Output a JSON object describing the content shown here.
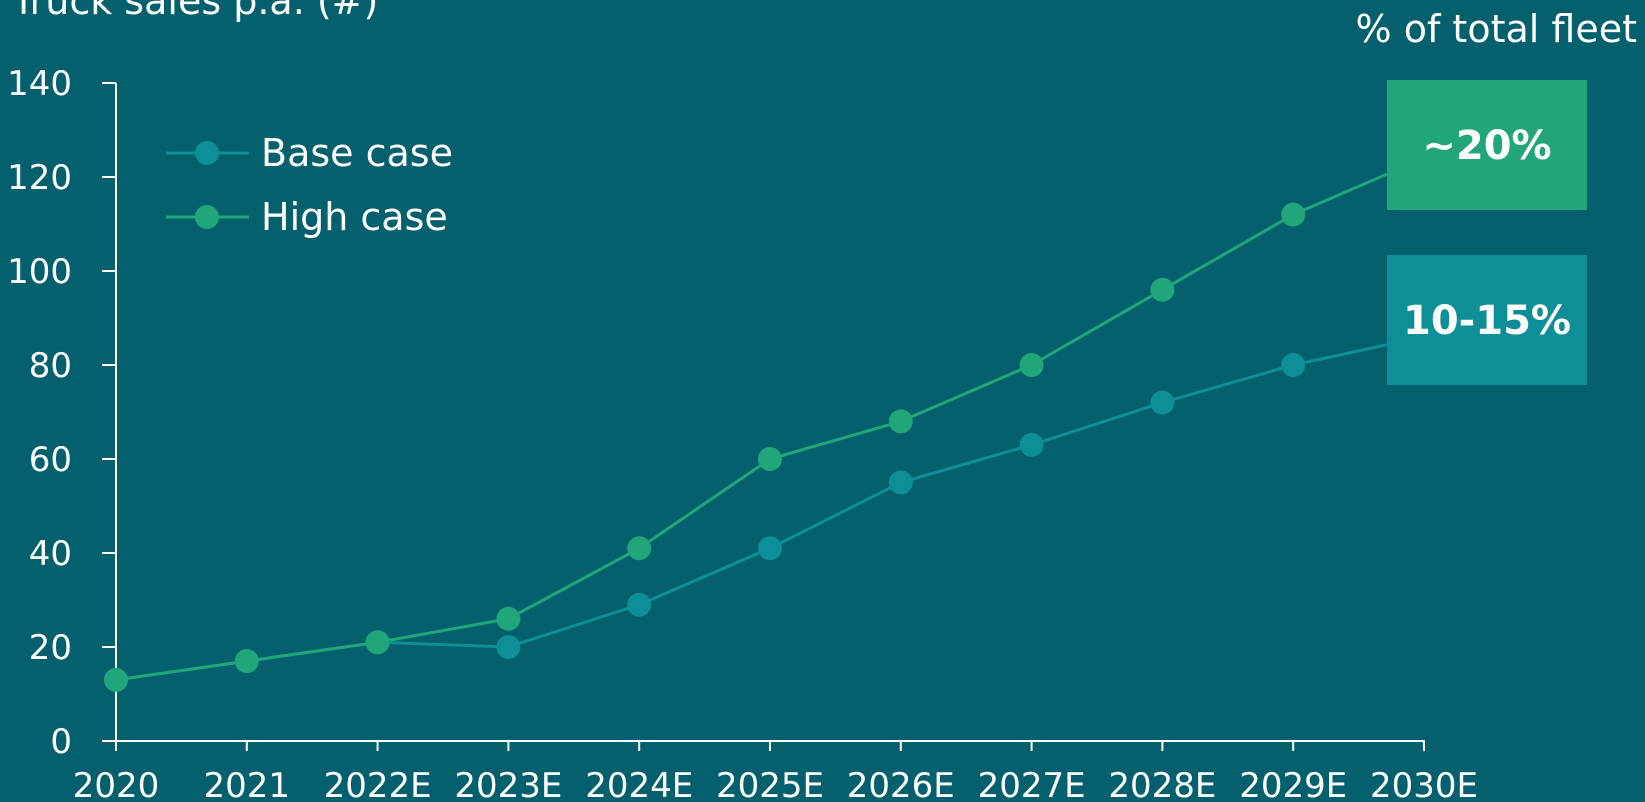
{
  "colors": {
    "background": "#03606C",
    "base_case": "#0E8E97",
    "high_case": "#22A57A",
    "axis": "#ffffff",
    "text": "#ffffff"
  },
  "chart_data": {
    "type": "line",
    "ylabel": "Truck sales p.a. (#)",
    "right_title": "% of total fleet",
    "ylim": [
      0,
      140
    ],
    "yticks": [
      "0",
      "20",
      "40",
      "60",
      "80",
      "100",
      "120",
      "140"
    ],
    "categories": [
      "2020",
      "2021",
      "2022E",
      "2023E",
      "2024E",
      "2025E",
      "2026E",
      "2027E",
      "2028E",
      "2029E",
      "2030E"
    ],
    "legend_position": "top-left",
    "series": [
      {
        "name": "Base case",
        "values": [
          13,
          17,
          21,
          20,
          29,
          41,
          55,
          63,
          72,
          80,
          86
        ],
        "end_label": "10-15%",
        "color_key": "base_case"
      },
      {
        "name": "High case",
        "values": [
          13,
          17,
          21,
          26,
          41,
          60,
          68,
          80,
          96,
          112,
          124
        ],
        "end_label": "~20%",
        "color_key": "high_case"
      }
    ]
  }
}
